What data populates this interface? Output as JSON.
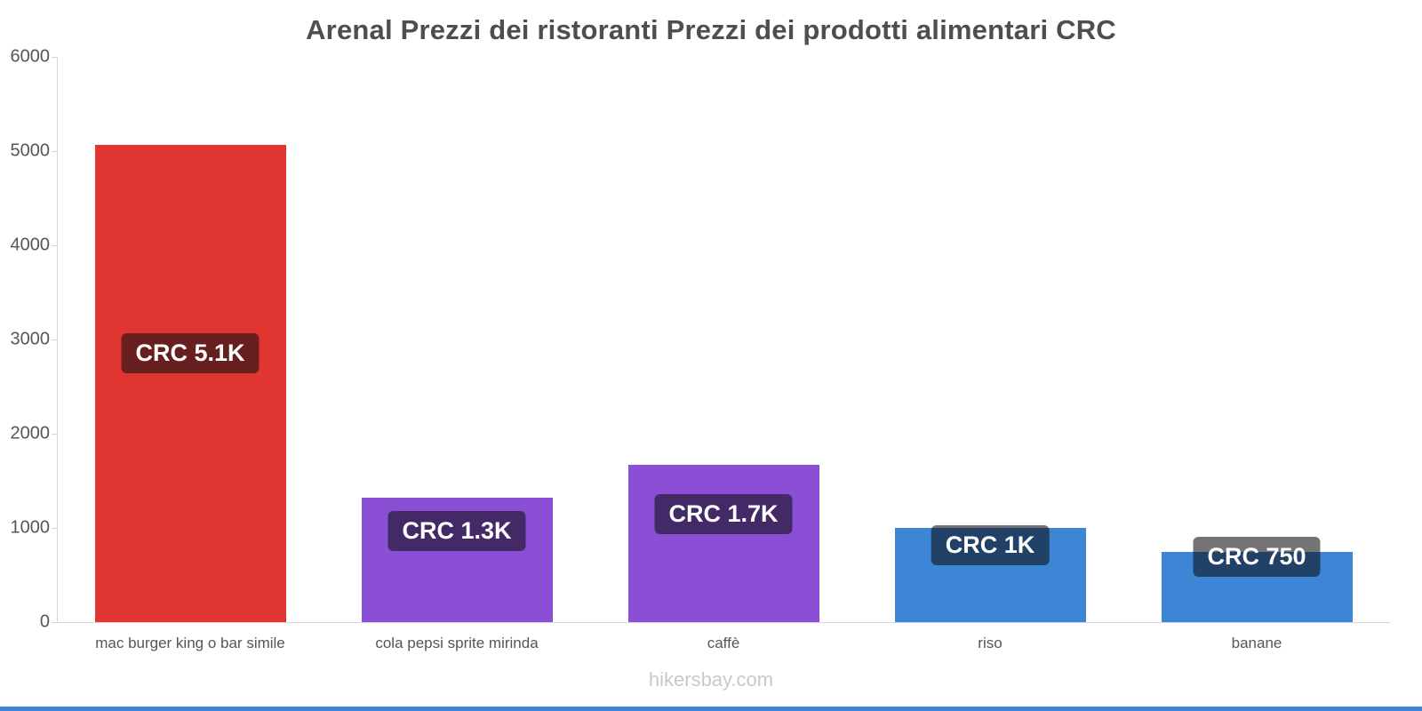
{
  "title": "Arenal Prezzi dei ristoranti Prezzi dei prodotti alimentari CRC",
  "footer": "hikersbay.com",
  "colors": {
    "red_bar": "#e03531",
    "purple_bar": "#8b4fd6",
    "blue_bar": "#3d86d6",
    "label_overlay": "rgba(15,15,20,0.58)",
    "axis_text": "#55555a",
    "axis_line": "#d6d6d6",
    "bottom_strip": "#3d86d6"
  },
  "chart_data": {
    "type": "bar",
    "title": "Arenal Prezzi dei ristoranti Prezzi dei prodotti alimentari CRC",
    "categories": [
      "mac burger king o bar simile",
      "cola pepsi sprite mirinda",
      "caffè",
      "riso",
      "banane"
    ],
    "values": [
      5070,
      1320,
      1670,
      1000,
      750
    ],
    "value_labels": [
      "CRC 5.1K",
      "CRC 1.3K",
      "CRC 1.7K",
      "CRC 1K",
      "CRC 750"
    ],
    "bar_colors": [
      "#e03531",
      "#8b4fd6",
      "#8b4fd6",
      "#3d86d6",
      "#3d86d6"
    ],
    "label_center_frac_from_top": [
      0.44,
      0.28,
      0.32,
      0.2,
      0.1
    ],
    "xlabel": "",
    "ylabel": "",
    "ylim": [
      0,
      6000
    ],
    "yticks": [
      0,
      1000,
      2000,
      3000,
      4000,
      5000,
      6000
    ],
    "grid": false,
    "legend": false,
    "currency": "CRC"
  }
}
